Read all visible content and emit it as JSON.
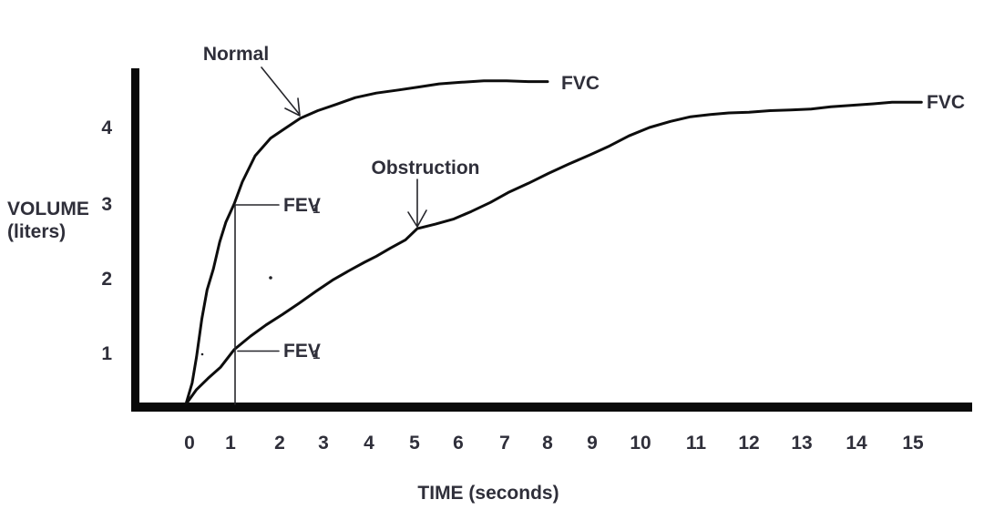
{
  "figure": {
    "background_color": "#ffffff",
    "ink_color": "#0d0d0d",
    "text_color": "#2f2f3a"
  },
  "chart_data": {
    "type": "line",
    "title": "",
    "xlabel": "TIME (seconds)",
    "ylabel_line1": "VOLUME",
    "ylabel_line2": "(liters)",
    "x_ticks": [
      "0",
      "1",
      "2",
      "3",
      "4",
      "5",
      "6",
      "7",
      "8",
      "9",
      "10",
      "11",
      "12",
      "13",
      "14",
      "15"
    ],
    "y_ticks": [
      "1",
      "2",
      "3",
      "4"
    ],
    "xlim": [
      0,
      15
    ],
    "ylim": [
      0,
      5
    ],
    "grid": false,
    "legend_position": "inline-annotations",
    "series": [
      {
        "name": "Normal",
        "x": [
          0,
          0.13,
          0.22,
          0.33,
          0.44,
          0.57,
          0.7,
          0.83,
          1.0,
          1.18,
          1.46,
          1.8,
          2.1,
          2.47,
          2.87,
          3.27,
          3.7,
          4.16,
          4.65,
          5.1,
          5.56,
          6.04,
          6.55,
          7.04,
          7.55,
          8.0
        ],
        "y": [
          0,
          0.42,
          0.93,
          1.46,
          1.85,
          2.13,
          2.49,
          2.76,
          3.0,
          3.29,
          3.63,
          3.86,
          3.98,
          4.12,
          4.22,
          4.3,
          4.39,
          4.45,
          4.49,
          4.53,
          4.57,
          4.59,
          4.61,
          4.61,
          4.6,
          4.6
        ]
      },
      {
        "name": "Obstruction",
        "x": [
          0,
          0.22,
          0.46,
          0.72,
          1.0,
          1.36,
          1.7,
          2.06,
          2.44,
          2.83,
          3.2,
          3.57,
          3.9,
          4.16,
          4.47,
          4.8,
          5.06,
          5.48,
          5.9,
          6.28,
          6.69,
          7.08,
          7.55,
          8.02,
          8.47,
          8.94,
          9.36,
          9.76,
          10.16,
          10.54,
          10.9,
          11.27,
          11.62,
          12.0,
          12.4,
          12.79,
          13.17,
          13.53,
          13.92,
          14.3,
          14.63,
          15.15
        ],
        "y": [
          0,
          0.29,
          0.51,
          0.73,
          1.05,
          1.23,
          1.38,
          1.52,
          1.67,
          1.83,
          1.98,
          2.11,
          2.22,
          2.3,
          2.41,
          2.52,
          2.67,
          2.73,
          2.8,
          2.9,
          3.02,
          3.15,
          3.27,
          3.4,
          3.52,
          3.64,
          3.76,
          3.89,
          4.0,
          4.08,
          4.14,
          4.17,
          4.19,
          4.2,
          4.22,
          4.23,
          4.24,
          4.27,
          4.29,
          4.31,
          4.33,
          4.33
        ]
      }
    ],
    "annotations": {
      "normal_label": "Normal",
      "obstruction_label": "Obstruction",
      "fvc_normal": "FVC",
      "fvc_obstruction": "FVC",
      "fev1_base": "FEV",
      "fev1_sub": "1",
      "readings": {
        "normal_fev1_liters": 3.0,
        "normal_fvc_liters": 4.6,
        "obstruction_fev1_liters": 1.05,
        "obstruction_fvc_liters": 4.3,
        "fev1_marker_time_seconds": 1
      }
    }
  }
}
